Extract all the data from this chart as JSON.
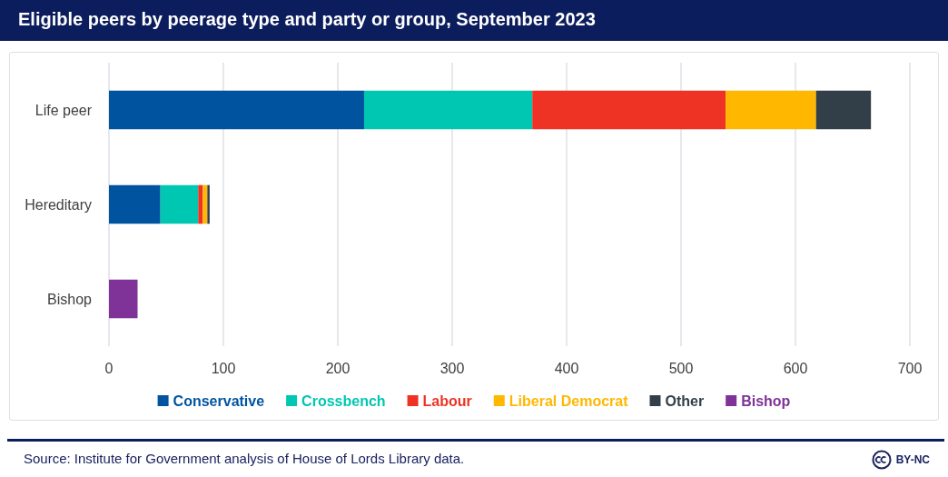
{
  "chart_data": {
    "type": "bar",
    "orientation": "horizontal",
    "stacked": true,
    "title": "Eligible peers by peerage type and party or group, September 2023",
    "categories": [
      "Life peer",
      "Hereditary",
      "Bishop"
    ],
    "series": [
      {
        "name": "Conservative",
        "color": "#00539f",
        "values": [
          223,
          45,
          null
        ]
      },
      {
        "name": "Crossbench",
        "color": "#00c7b2",
        "values": [
          147,
          33,
          null
        ]
      },
      {
        "name": "Labour",
        "color": "#ee3224",
        "values": [
          169,
          4,
          null
        ]
      },
      {
        "name": "Liberal Democrat",
        "color": "#ffb700",
        "values": [
          79,
          4,
          null
        ]
      },
      {
        "name": "Other",
        "color": "#333f48",
        "values": [
          48,
          2,
          null
        ]
      },
      {
        "name": "Bishop",
        "color": "#7f3298",
        "values": [
          null,
          null,
          25
        ]
      }
    ],
    "xlim": [
      0,
      700
    ],
    "xticks": [
      0,
      100,
      200,
      300,
      400,
      500,
      600,
      700
    ],
    "grid": "x",
    "legend": "bottom",
    "annotations": [
      "Source: Institute for Government analysis of House of Lords Library data.",
      "BY-NC"
    ]
  }
}
